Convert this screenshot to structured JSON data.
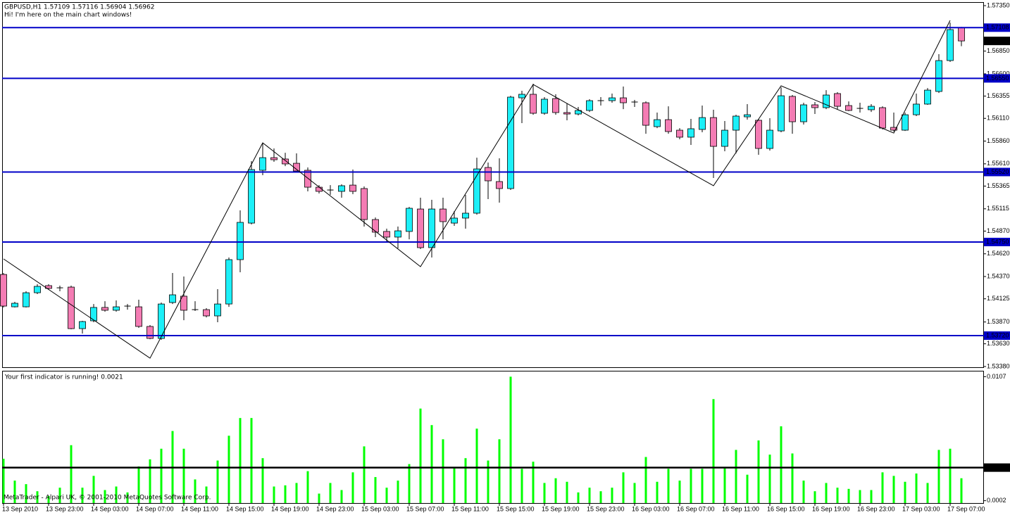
{
  "chart_data": [
    {
      "type": "candlestick",
      "title": "GBPUSD,H1  1.57109 1.57116 1.56904 1.56962",
      "subtitle": "Hi! I'm here on the main chart windows!",
      "categories": [
        "13 Sep 2010",
        null,
        null,
        null,
        "13 Sep 23:00",
        null,
        null,
        null,
        "14 Sep 03:00",
        null,
        null,
        null,
        "14 Sep 07:00",
        null,
        null,
        null,
        "14 Sep 11:00",
        null,
        null,
        null,
        "14 Sep 15:00",
        null,
        null,
        null,
        "14 Sep 19:00",
        null,
        null,
        null,
        "14 Sep 23:00",
        null,
        null,
        null,
        "15 Sep 03:00",
        null,
        null,
        null,
        "15 Sep 07:00",
        null,
        null,
        null,
        "15 Sep 11:00",
        null,
        null,
        null,
        "15 Sep 15:00",
        null,
        null,
        null,
        "15 Sep 19:00",
        null,
        null,
        null,
        "15 Sep 23:00",
        null,
        null,
        null,
        "16 Sep 03:00",
        null,
        null,
        null,
        "16 Sep 07:00",
        null,
        null,
        null,
        "16 Sep 11:00",
        null,
        null,
        null,
        "16 Sep 15:00",
        null,
        null,
        null,
        "16 Sep 19:00",
        null,
        null,
        null,
        "16 Sep 23:00",
        null,
        null,
        null,
        "17 Sep 03:00",
        null,
        null,
        null,
        "17 Sep 07:00",
        null
      ],
      "open": [
        1.54393,
        1.54037,
        1.54037,
        1.54192,
        1.5427,
        1.54239,
        1.54254,
        1.53797,
        1.53883,
        1.5403,
        1.53999,
        1.54045,
        1.54037,
        1.53821,
        1.53689,
        1.54084,
        1.54154,
        1.54006,
        1.54006,
        1.53937,
        1.54068,
        1.54556,
        1.54958,
        1.55539,
        1.55678,
        1.55663,
        1.55616,
        1.55539,
        1.55353,
        1.55322,
        1.55307,
        1.55376,
        1.55338,
        1.54997,
        1.54866,
        1.54804,
        1.54866,
        1.55113,
        1.54688,
        1.55113,
        1.54958,
        1.55013,
        1.55067,
        1.5557,
        1.55415,
        1.55338,
        1.56336,
        1.56375,
        1.56166,
        1.56328,
        1.56174,
        1.56158,
        1.56197,
        1.56297,
        1.56305,
        1.56336,
        1.5629,
        1.56282,
        1.56019,
        1.56096,
        1.5598,
        1.55903,
        1.55988,
        1.56119,
        1.55802,
        1.5598,
        1.56127,
        1.56089,
        1.55779,
        1.55972,
        1.56352,
        1.56073,
        1.56259,
        1.56228,
        1.56383,
        1.56251,
        1.5622,
        1.56205,
        1.56228,
        1.56011,
        1.5598,
        1.5615,
        1.56267,
        1.56406,
        1.56746,
        1.57109
      ],
      "high": [
        1.54409,
        1.54092,
        1.54208,
        1.54285,
        1.54285,
        1.5427,
        1.5427,
        1.53883,
        1.54068,
        1.54099,
        1.54107,
        1.54068,
        1.54115,
        1.53836,
        1.54084,
        1.54409,
        1.5437,
        1.54099,
        1.54022,
        1.54231,
        1.54579,
        1.55098,
        1.5564,
        1.55841,
        1.55779,
        1.55732,
        1.55725,
        1.5557,
        1.55376,
        1.55376,
        1.55384,
        1.55547,
        1.55361,
        1.5502,
        1.54897,
        1.5492,
        1.55136,
        1.55237,
        1.55214,
        1.55237,
        1.5509,
        1.55268,
        1.55678,
        1.55624,
        1.55671,
        1.56359,
        1.56414,
        1.56491,
        1.56344,
        1.56375,
        1.56274,
        1.56236,
        1.56321,
        1.56344,
        1.56383,
        1.5646,
        1.56313,
        1.56297,
        1.56174,
        1.56243,
        1.56003,
        1.56104,
        1.56251,
        1.56205,
        1.56081,
        1.5615,
        1.56267,
        1.56104,
        1.56112,
        1.56452,
        1.56367,
        1.56282,
        1.5629,
        1.56421,
        1.56398,
        1.56297,
        1.56282,
        1.56267,
        1.56243,
        1.56174,
        1.56174,
        1.56383,
        1.56444,
        1.56816,
        1.57164,
        1.57116
      ],
      "low": [
        1.5403,
        1.5403,
        1.5403,
        1.54177,
        1.54223,
        1.54208,
        1.5379,
        1.53743,
        1.53867,
        1.53983,
        1.53983,
        1.54006,
        1.53805,
        1.53681,
        1.53674,
        1.54068,
        1.5389,
        1.53991,
        1.53921,
        1.53867,
        1.54037,
        1.54417,
        1.54943,
        1.55485,
        1.55632,
        1.55585,
        1.55516,
        1.55307,
        1.55284,
        1.55268,
        1.55237,
        1.55276,
        1.5492,
        1.54804,
        1.54757,
        1.5468,
        1.5478,
        1.54672,
        1.54579,
        1.5478,
        1.54928,
        1.54897,
        1.55051,
        1.55222,
        1.55183,
        1.55322,
        1.56058,
        1.5615,
        1.5615,
        1.5615,
        1.56089,
        1.56143,
        1.56181,
        1.56251,
        1.56282,
        1.56212,
        1.56236,
        1.55941,
        1.56003,
        1.55941,
        1.5588,
        1.55818,
        1.55957,
        1.55454,
        1.55748,
        1.55725,
        1.56096,
        1.55709,
        1.55756,
        1.55957,
        1.55941,
        1.56042,
        1.56158,
        1.56212,
        1.56205,
        1.56189,
        1.56174,
        1.56181,
        1.55988,
        1.55965,
        1.55972,
        1.56135,
        1.56259,
        1.5639,
        1.56731,
        1.56904
      ],
      "close": [
        1.54045,
        1.54076,
        1.54192,
        1.54262,
        1.54239,
        1.54246,
        1.53797,
        1.53875,
        1.5403,
        1.53999,
        1.54037,
        1.54037,
        1.53821,
        1.53689,
        1.54068,
        1.54169,
        1.53999,
        1.53999,
        1.53937,
        1.54068,
        1.54556,
        1.54966,
        1.55547,
        1.55678,
        1.55655,
        1.55609,
        1.55531,
        1.55353,
        1.55307,
        1.55315,
        1.55369,
        1.55307,
        1.54997,
        1.54858,
        1.54804,
        1.54873,
        1.55121,
        1.54688,
        1.55113,
        1.54974,
        1.55013,
        1.55067,
        1.55554,
        1.55423,
        1.55338,
        1.56344,
        1.56375,
        1.56166,
        1.56321,
        1.56174,
        1.56158,
        1.56197,
        1.56305,
        1.56305,
        1.56336,
        1.56282,
        1.56282,
        1.56034,
        1.56096,
        1.55965,
        1.55903,
        1.55996,
        1.56119,
        1.55802,
        1.5598,
        1.56135,
        1.5615,
        1.55779,
        1.5598,
        1.56359,
        1.56073,
        1.56259,
        1.56228,
        1.56367,
        1.56243,
        1.56197,
        1.56212,
        1.56243,
        1.56003,
        1.5598,
        1.5615,
        1.56267,
        1.56421,
        1.56746,
        1.57087,
        1.56962
      ],
      "up_color": "#1cf0f8",
      "down_color": "#f47cb4",
      "ylim": [
        1.53372,
        1.57389
      ],
      "yticks": [
        {
          "value": 1.5735,
          "label": "1.57350"
        },
        {
          "value": 1.5685,
          "label": "1.56850"
        },
        {
          "value": 1.566,
          "label": "1.56600"
        },
        1.56355,
        {
          "value": 1.5611,
          "label": "1.56110"
        },
        {
          "value": 1.5586,
          "label": "1.55860"
        },
        {
          "value": 1.5561,
          "label": "1.55610"
        },
        1.55365,
        1.55115,
        {
          "value": 1.5487,
          "label": "1.54870"
        },
        {
          "value": 1.5462,
          "label": "1.54620"
        },
        {
          "value": 1.5437,
          "label": "1.54370"
        },
        1.54125,
        {
          "value": 1.5387,
          "label": "1.53870"
        },
        {
          "value": 1.5363,
          "label": "1.53630"
        },
        {
          "value": 1.5338,
          "label": "1.53380"
        }
      ],
      "levels": [
        {
          "value": 1.57108,
          "label": "1.57108"
        },
        {
          "value": 1.5655,
          "label": "1.56550"
        },
        {
          "value": 1.5552,
          "label": "1.55520"
        },
        {
          "value": 1.5475,
          "label": "1.54750"
        },
        {
          "value": 1.5372,
          "label": "1.53720"
        }
      ],
      "level_color": "#0000c8",
      "zigzag": {
        "x": [
          0,
          13,
          23,
          37,
          47,
          63,
          69,
          79,
          84
        ],
        "values": [
          1.54564,
          1.53472,
          1.55841,
          1.54479,
          1.56483,
          1.55369,
          1.56468,
          1.55949,
          1.57188
        ],
        "color": "#000000"
      }
    },
    {
      "type": "bar",
      "title": "Your first indicator is running! 0.0021",
      "values": [
        0.00375,
        0.0019,
        0.0016,
        0.001,
        0.0006,
        0.0013,
        0.0049,
        0.0013,
        0.0023,
        0.0011,
        0.0014,
        0.0009,
        0.0031,
        0.0037,
        0.0046,
        0.0061,
        0.0046,
        0.002,
        0.0014,
        0.0036,
        0.0057,
        0.0072,
        0.0072,
        0.0038,
        0.0014,
        0.0015,
        0.0017,
        0.0027,
        0.0008,
        0.0017,
        0.0011,
        0.0026,
        0.0048,
        0.0022,
        0.0013,
        0.0019,
        0.0033,
        0.008,
        0.0066,
        0.0054,
        0.003,
        0.0038,
        0.0063,
        0.0036,
        0.0054,
        0.0107,
        0.0029,
        0.0035,
        0.0017,
        0.0021,
        0.0018,
        0.0009,
        0.0013,
        0.001,
        0.0013,
        0.0026,
        0.0017,
        0.0039,
        0.0018,
        0.0029,
        0.0019,
        0.0029,
        0.0029,
        0.0088,
        0.003,
        0.0045,
        0.0024,
        0.0053,
        0.0041,
        0.0065,
        0.0042,
        0.0019,
        0.001,
        0.0017,
        0.0013,
        0.0012,
        0.0011,
        0.0011,
        0.0026,
        0.0023,
        0.0018,
        0.0025,
        0.0017,
        0.0045,
        0.0046,
        0.0021
      ],
      "color": "#00ff00",
      "ylim": [
        0,
        0.0112
      ],
      "yticks": [
        0.0107,
        0.0002
      ],
      "level": {
        "value": 0.003,
        "label": "0.00300"
      }
    }
  ],
  "footer": "MetaTrader - Alpari UK, © 2001-2010 MetaQuotes Software Corp."
}
